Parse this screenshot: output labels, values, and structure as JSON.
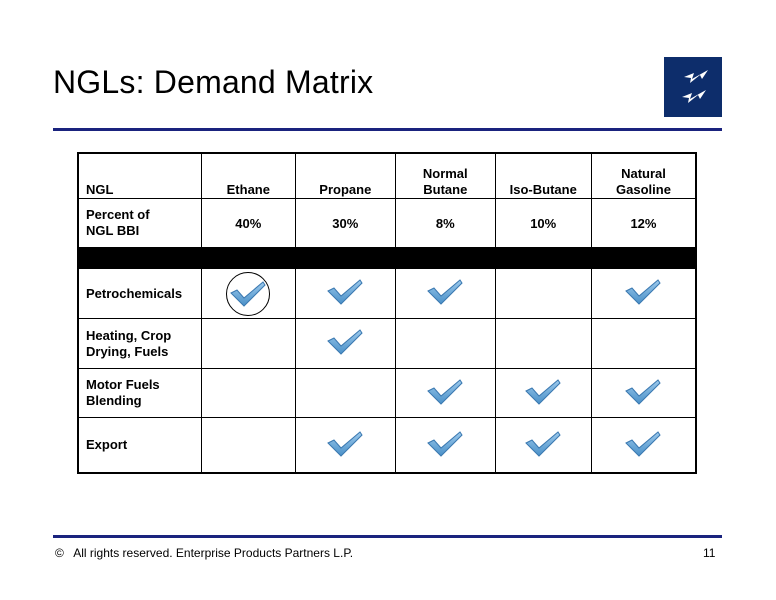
{
  "slide": {
    "title": "NGLs:  Demand Matrix",
    "footer": "All rights reserved. Enterprise Products Partners L.P.",
    "copyright_symbol": "©",
    "page_number": "11",
    "logo_icon": "lightning-bolt-logo-icon",
    "accent_color": "#1a237e",
    "logo_color": "#0d2d6b",
    "check_color": "#4a90c8"
  },
  "table": {
    "header": {
      "first": "NGL",
      "columns": [
        {
          "line1": "",
          "line2": "Ethane"
        },
        {
          "line1": "",
          "line2": "Propane"
        },
        {
          "line1": "Normal",
          "line2": "Butane"
        },
        {
          "line1": "",
          "line2": "Iso-Butane"
        },
        {
          "line1": "Natural",
          "line2": "Gasoline"
        }
      ]
    },
    "percent_row": {
      "label_line1": "Percent of",
      "label_line2": "NGL BBI",
      "values": [
        "40%",
        "30%",
        "8%",
        "10%",
        "12%"
      ]
    },
    "uses": [
      {
        "label_line1": "Petrochemicals",
        "label_line2": "",
        "checks": [
          true,
          true,
          true,
          false,
          true
        ],
        "circled": [
          true,
          false,
          false,
          false,
          false
        ]
      },
      {
        "label_line1": "Heating, Crop",
        "label_line2": "Drying, Fuels",
        "checks": [
          false,
          true,
          false,
          false,
          false
        ],
        "circled": [
          false,
          false,
          false,
          false,
          false
        ]
      },
      {
        "label_line1": "Motor Fuels",
        "label_line2": "Blending",
        "checks": [
          false,
          false,
          true,
          true,
          true
        ],
        "circled": [
          false,
          false,
          false,
          false,
          false
        ]
      },
      {
        "label_line1": "Export",
        "label_line2": "",
        "checks": [
          false,
          true,
          true,
          true,
          true
        ],
        "circled": [
          false,
          false,
          false,
          false,
          false
        ]
      }
    ]
  }
}
